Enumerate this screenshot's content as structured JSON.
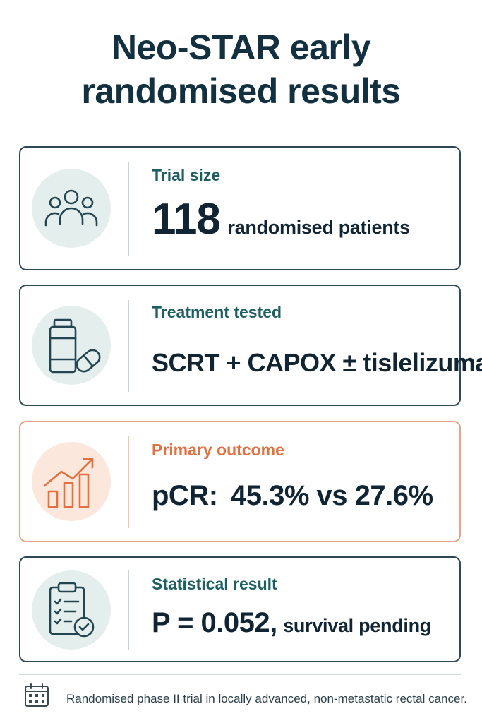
{
  "title": {
    "line1": "Neo-STAR early",
    "line2": "randomised results"
  },
  "cards": [
    {
      "icon": "people-group-icon",
      "label": "Trial size",
      "value_main": "118",
      "value_suffix": "randomised patients"
    },
    {
      "icon": "medicine-bottle-pill-icon",
      "label": "Treatment tested",
      "value_main": "SCRT + CAPOX ± tislelizumab"
    },
    {
      "icon": "rising-bar-chart-icon",
      "label": "Primary outcome",
      "value_prefix": "pCR:",
      "value_main": "45.3% vs 27.6%"
    },
    {
      "icon": "clipboard-checklist-icon",
      "label": "Statistical result",
      "value_main": "P = 0.052,",
      "value_suffix": "survival pending"
    }
  ],
  "footer": {
    "icon": "calendar-icon",
    "text": "Randomised phase II trial in locally advanced, non-metastatic rectal cancer."
  },
  "colors": {
    "title": "#12303f",
    "card_border": "#2c4a56",
    "label": "#1d5e62",
    "accent": "#e2713f",
    "accent_border": "#e9a585",
    "icon_bg": "#e4eeec",
    "accent_icon_bg": "#fbe7dc"
  }
}
